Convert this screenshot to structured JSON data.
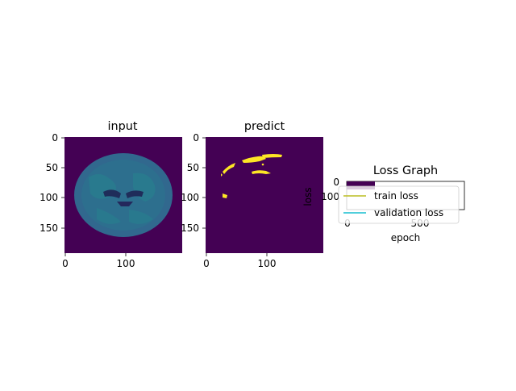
{
  "colors": {
    "background": "#440154",
    "brain": "#31688e",
    "brain_detail": "#26828e",
    "mask": "#fde725",
    "train_line": "#bcbd22",
    "validation_line": "#17becf"
  },
  "chart_data": [
    {
      "type": "heatmap",
      "title": "input",
      "content": "axial brain MRI slice",
      "xlim": [
        0,
        192
      ],
      "ylim": [
        192,
        0
      ],
      "x_ticks": [
        "0",
        "100"
      ],
      "y_ticks": [
        "0",
        "50",
        "100",
        "150"
      ],
      "colormap": "viridis"
    },
    {
      "type": "heatmap",
      "title": "predict",
      "content": "binary lesion mask",
      "xlim": [
        0,
        192
      ],
      "ylim": [
        192,
        0
      ],
      "x_ticks": [
        "0",
        "100"
      ],
      "y_ticks": [
        "0",
        "50",
        "100",
        "150"
      ],
      "colormap": "viridis"
    },
    {
      "type": "line",
      "title": "Loss Graph",
      "xlabel": "epoch",
      "ylabel": "loss",
      "x_ticks": [
        "0",
        "500"
      ],
      "y_ticks": [
        "0",
        "100"
      ],
      "legend_position": "overlapping axes, center",
      "series": [
        {
          "name": "train loss",
          "color": "#bcbd22"
        },
        {
          "name": "validation loss",
          "color": "#17becf"
        }
      ]
    }
  ]
}
